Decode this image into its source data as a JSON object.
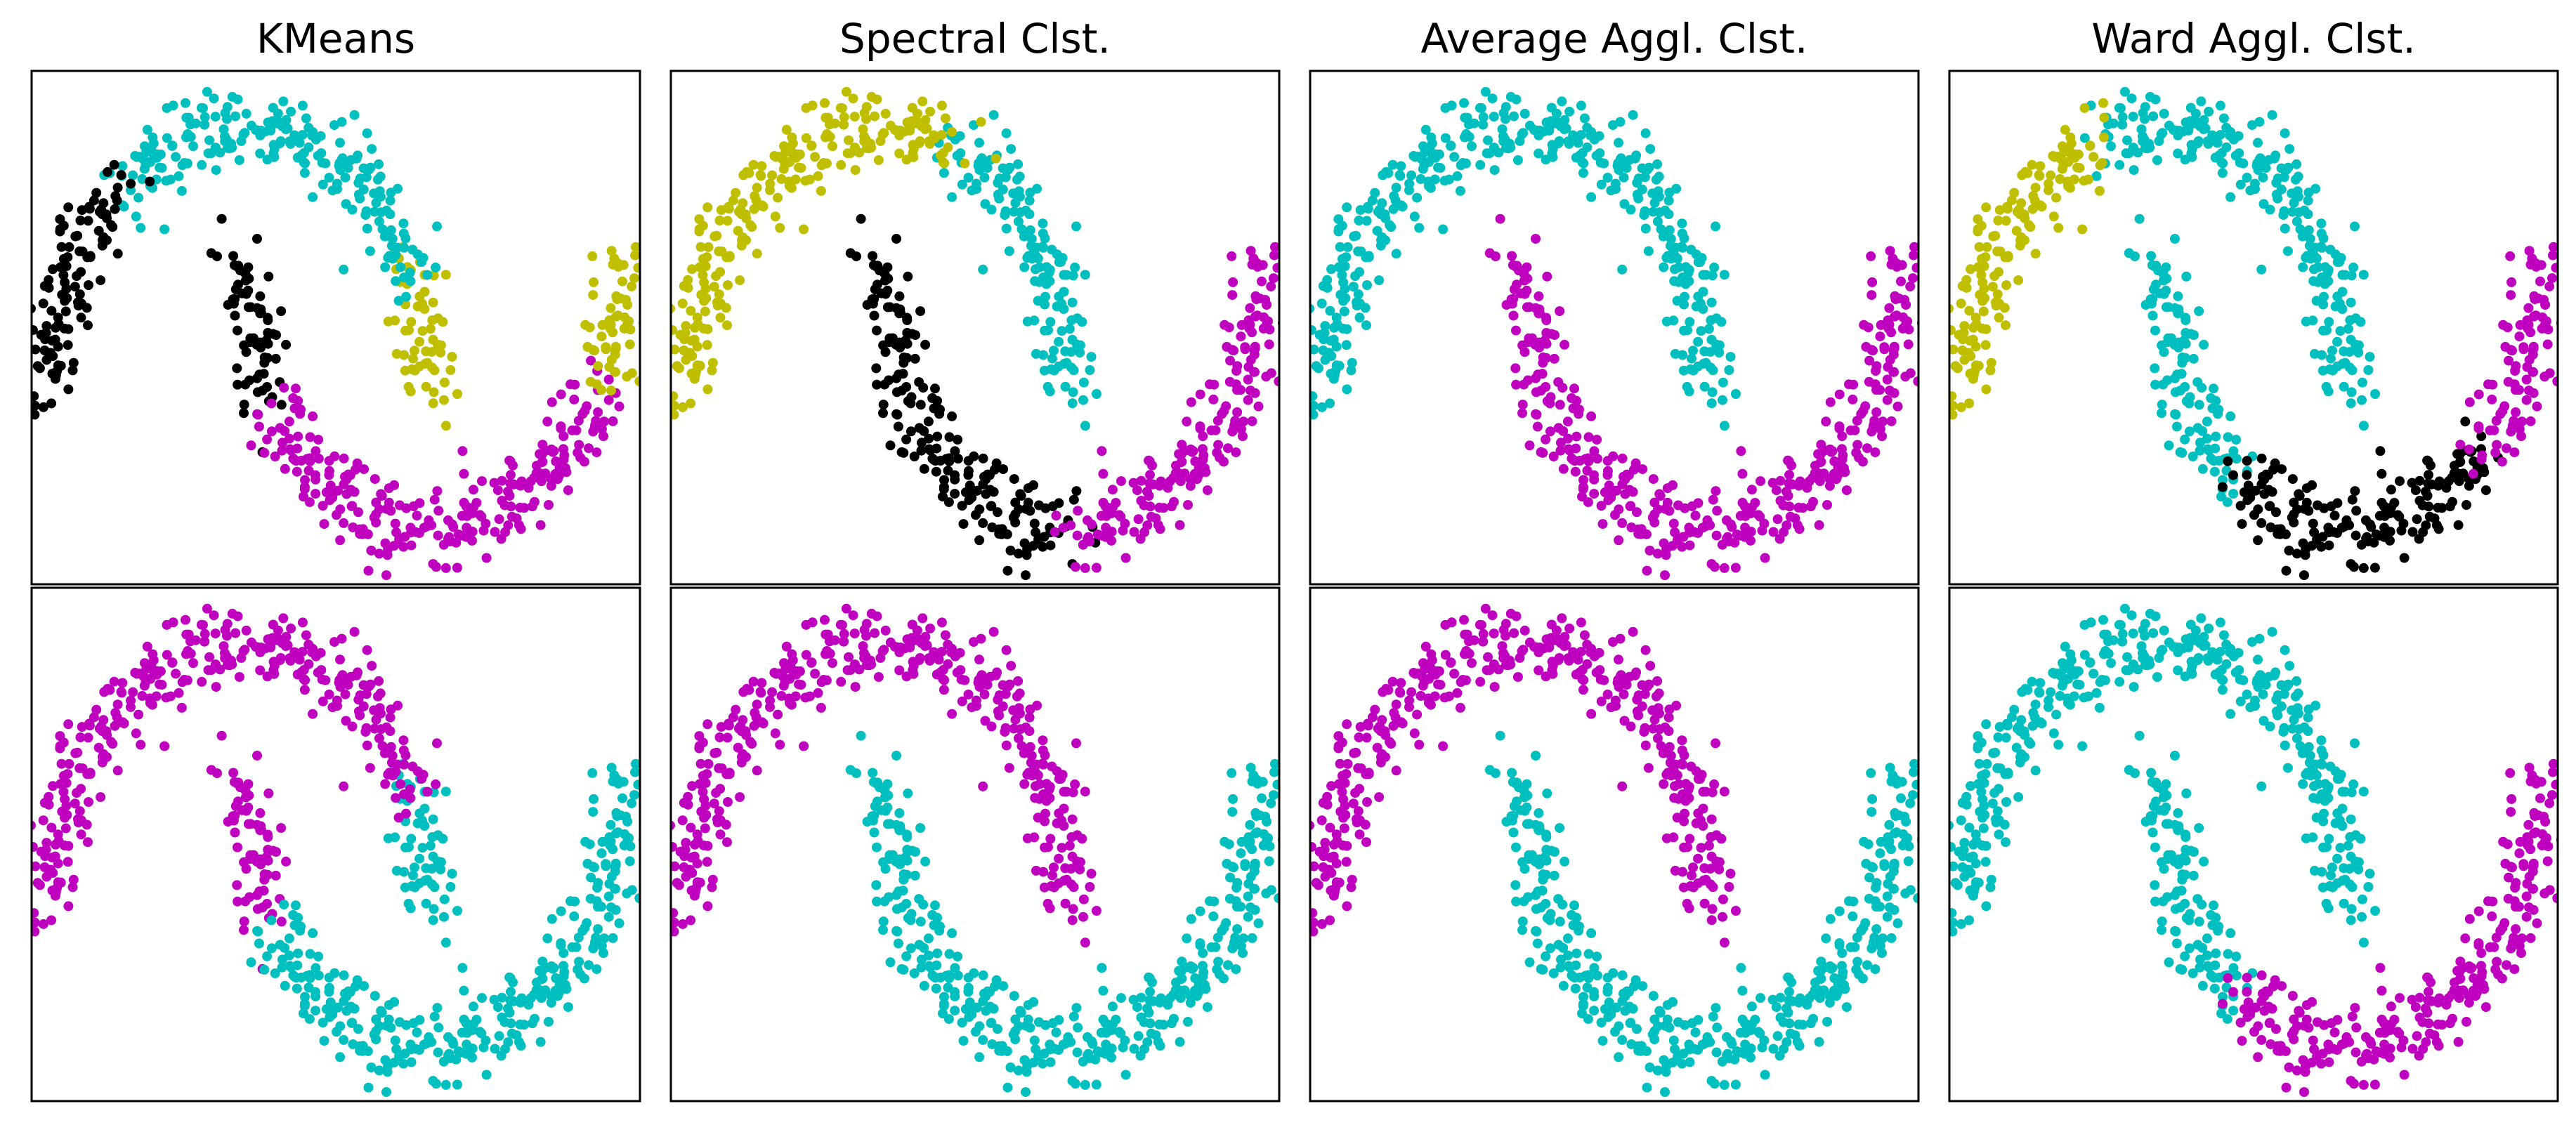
{
  "colors": {
    "cyan": "#00bfbf",
    "yellow": "#bfbf00",
    "magenta": "#bf00bf",
    "black": "#000000"
  },
  "chart_data": {
    "type": "scatter",
    "dataset": "two interleaving moons (noisy)",
    "titles": [
      "KMeans",
      "Spectral Clst.",
      "Average Aggl. Clst.",
      "Ward Aggl. Clst."
    ],
    "axes": {
      "ticks": "none",
      "grid": false,
      "xlim": [
        -1.1,
        2.1
      ],
      "ylim": [
        -0.72,
        1.22
      ]
    },
    "rows": [
      {
        "n_clusters": 4,
        "panels": [
          {
            "method": "KMeans",
            "segments": [
              {
                "color": "black",
                "ranges": [
                  [
                    "outer",
                    0.72,
                    1.0
                  ],
                  [
                    "inner",
                    0.0,
                    0.18
                  ]
                ]
              },
              {
                "color": "cyan",
                "ranges": [
                  [
                    "outer",
                    0.15,
                    0.72
                  ]
                ]
              },
              {
                "color": "yellow",
                "ranges": [
                  [
                    "outer",
                    0.0,
                    0.15
                  ],
                  [
                    "inner",
                    0.85,
                    1.0
                  ]
                ]
              },
              {
                "color": "magenta",
                "ranges": [
                  [
                    "inner",
                    0.18,
                    0.85
                  ]
                ]
              }
            ]
          },
          {
            "method": "Spectral Clst.",
            "segments": [
              {
                "color": "yellow",
                "ranges": [
                  [
                    "outer",
                    0.38,
                    1.0
                  ]
                ]
              },
              {
                "color": "cyan",
                "ranges": [
                  [
                    "outer",
                    0.0,
                    0.38
                  ]
                ]
              },
              {
                "color": "black",
                "ranges": [
                  [
                    "inner",
                    0.0,
                    0.5
                  ]
                ]
              },
              {
                "color": "magenta",
                "ranges": [
                  [
                    "inner",
                    0.5,
                    1.0
                  ]
                ]
              }
            ]
          },
          {
            "method": "Average Aggl. Clst.",
            "segments": [
              {
                "color": "cyan",
                "ranges": [
                  [
                    "outer",
                    0.0,
                    1.0
                  ]
                ]
              },
              {
                "color": "magenta",
                "ranges": [
                  [
                    "inner",
                    0.0,
                    1.0
                  ]
                ]
              }
            ]
          },
          {
            "method": "Ward Aggl. Clst.",
            "segments": [
              {
                "color": "yellow",
                "ranges": [
                  [
                    "outer",
                    0.6,
                    1.0
                  ]
                ]
              },
              {
                "color": "cyan",
                "ranges": [
                  [
                    "outer",
                    0.0,
                    0.6
                  ],
                  [
                    "inner",
                    0.0,
                    0.3
                  ]
                ]
              },
              {
                "color": "black",
                "ranges": [
                  [
                    "inner",
                    0.3,
                    0.75
                  ]
                ]
              },
              {
                "color": "magenta",
                "ranges": [
                  [
                    "inner",
                    0.75,
                    1.0
                  ]
                ]
              }
            ]
          }
        ]
      },
      {
        "n_clusters": 2,
        "panels": [
          {
            "method": "KMeans",
            "segments": [
              {
                "color": "magenta",
                "ranges": [
                  [
                    "outer",
                    0.15,
                    1.0
                  ],
                  [
                    "inner",
                    0.0,
                    0.18
                  ]
                ]
              },
              {
                "color": "cyan",
                "ranges": [
                  [
                    "outer",
                    0.0,
                    0.15
                  ],
                  [
                    "inner",
                    0.18,
                    1.0
                  ]
                ]
              }
            ]
          },
          {
            "method": "Spectral Clst.",
            "segments": [
              {
                "color": "magenta",
                "ranges": [
                  [
                    "outer",
                    0.0,
                    1.0
                  ]
                ]
              },
              {
                "color": "cyan",
                "ranges": [
                  [
                    "inner",
                    0.0,
                    1.0
                  ]
                ]
              }
            ]
          },
          {
            "method": "Average Aggl. Clst.",
            "segments": [
              {
                "color": "magenta",
                "ranges": [
                  [
                    "outer",
                    0.0,
                    1.0
                  ]
                ]
              },
              {
                "color": "cyan",
                "ranges": [
                  [
                    "inner",
                    0.0,
                    1.0
                  ]
                ]
              }
            ]
          },
          {
            "method": "Ward Aggl. Clst.",
            "segments": [
              {
                "color": "cyan",
                "ranges": [
                  [
                    "outer",
                    0.0,
                    1.0
                  ],
                  [
                    "inner",
                    0.0,
                    0.3
                  ]
                ]
              },
              {
                "color": "magenta",
                "ranges": [
                  [
                    "inner",
                    0.3,
                    1.0
                  ]
                ]
              }
            ]
          }
        ]
      }
    ]
  }
}
